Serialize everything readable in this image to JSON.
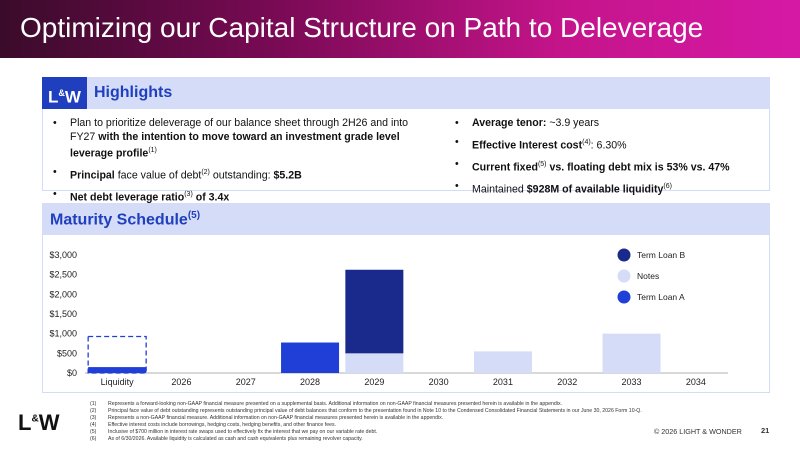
{
  "title": "Optimizing our Capital Structure on Path to Deleverage",
  "logo": {
    "text": "LW",
    "ampersand": "&"
  },
  "highlights": {
    "header": "Highlights",
    "left": [
      {
        "pre": "Plan to prioritize deleverage of our balance sheet through 2H26 and into FY27 ",
        "bold": "with the intention to move toward an investment grade level leverage profile",
        "sup": "(1)",
        "post": ""
      },
      {
        "bold": "Principal",
        "pre": "",
        "post1": " face value of debt",
        "sup": "(2)",
        "post2": " outstanding: ",
        "bold2": "$5.2B"
      },
      {
        "bold": "Net debt leverage ratio",
        "sup": "(3)",
        "post": " of 3.4x"
      }
    ],
    "right": [
      {
        "bold": "Average tenor:",
        "post": " ~3.9 years"
      },
      {
        "bold": "Effective Interest cost",
        "sup": "(4)",
        "post": ": 6.30%"
      },
      {
        "bold": "Current fixed",
        "sup": "(5)",
        "post": " vs. floating debt mix is 53% vs. 47%"
      },
      {
        "pre": "Maintained ",
        "bold": "$928M of available liquidity",
        "sup": "(6)"
      }
    ]
  },
  "maturity": {
    "header": "Maturity Schedule",
    "sup": "(5)"
  },
  "chart_data": {
    "type": "bar",
    "stacked": true,
    "categories": [
      "Liquidity",
      "2026",
      "2027",
      "2028",
      "2029",
      "2030",
      "2031",
      "2032",
      "2033",
      "2034"
    ],
    "series": [
      {
        "name": "Term Loan A",
        "color": "#1f3fd6",
        "values": [
          150,
          0,
          0,
          775,
          0,
          0,
          0,
          0,
          0,
          0
        ]
      },
      {
        "name": "Notes",
        "color": "#d4dcf7",
        "values": [
          0,
          0,
          0,
          0,
          500,
          0,
          550,
          0,
          1000,
          0
        ]
      },
      {
        "name": "Term Loan B",
        "color": "#1a2a8c",
        "values": [
          0,
          0,
          0,
          0,
          2125,
          0,
          0,
          0,
          0,
          0
        ]
      }
    ],
    "liquidity_total": 928,
    "yticks": [
      "$0",
      "$500",
      "$1,000",
      "$1,500",
      "$2,000",
      "$2,500",
      "$3,000"
    ],
    "ylim": [
      0,
      3000
    ],
    "legend": [
      "Term Loan B",
      "Notes",
      "Term Loan A"
    ],
    "legend_position": "right"
  },
  "footnotes": [
    {
      "num": "(1)",
      "text": "Represents a forward-looking non-GAAP financial measure presented on a supplemental basis. Additional information on non-GAAP financial measures presented herein is available in the appendix."
    },
    {
      "num": "(2)",
      "text": "Principal face value of debt outstanding represents outstanding principal value of debt balances that conform to the presentation found in Note 10 to the Condensed Consolidated Financial Statements in our June 30, 2026 Form 10-Q."
    },
    {
      "num": "(3)",
      "text": "Represents a non-GAAP financial measure. Additional information on non-GAAP financial measures presented herein is available in the appendix."
    },
    {
      "num": "(4)",
      "text": "Effective interest costs include borrowings, hedging costs, hedging benefits, and other finance fees."
    },
    {
      "num": "(5)",
      "text": "Inclusive of $700 million in interest rate swaps used to effectively fix the interest that we pay on our variable rate debt."
    },
    {
      "num": "(6)",
      "text": "As of 6/30/2026. Available liquidity is calculated as cash and cash equivalents plus remaining revolver capacity."
    }
  ],
  "copyright": "© 2026 LIGHT & WONDER",
  "page_number": "21"
}
